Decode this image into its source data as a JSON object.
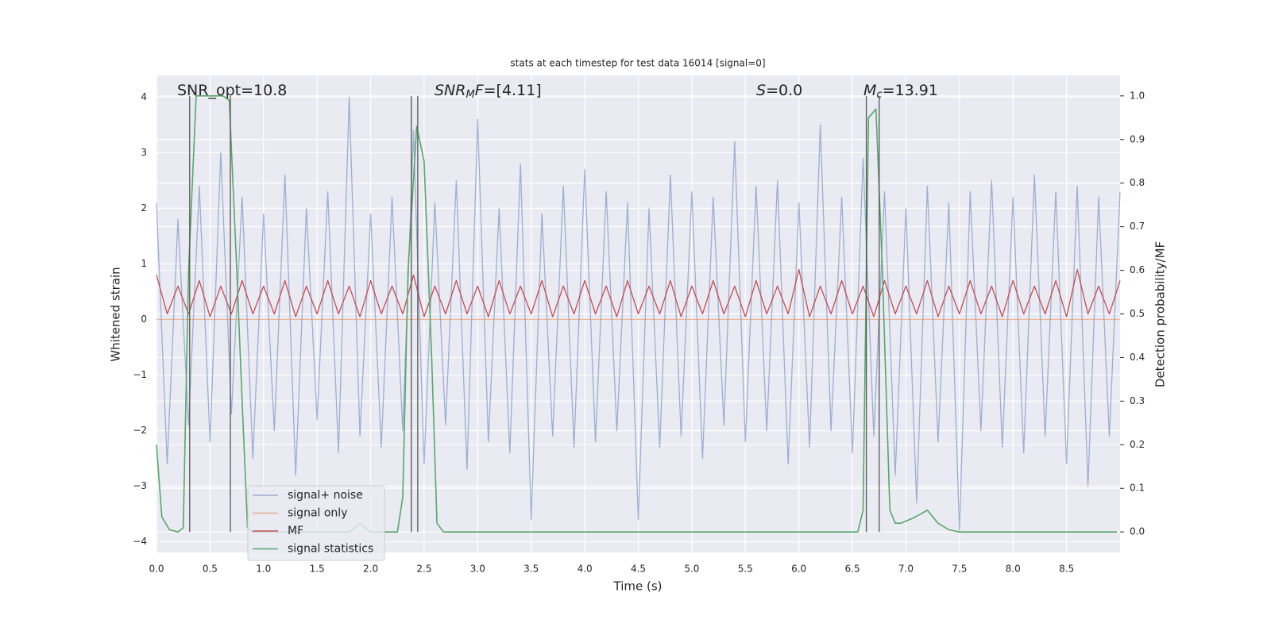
{
  "chart_data": {
    "type": "line",
    "title": "stats at each timestep for test data 16014 [signal=0]",
    "x_label": "Time (s)",
    "y_label": "Whitened strain",
    "y2_label": "Detection probability/MF",
    "annotations": [
      [
        "SNR_opt=10.8"
      ],
      [
        "SNR",
        "M",
        "F",
        "=[4.11]"
      ],
      [
        "S",
        "=0.0"
      ],
      [
        "M",
        "c",
        "=13.91"
      ]
    ],
    "xlim": [
      0,
      9.0
    ],
    "ylim": [
      -4.19,
      4.39
    ],
    "y2lim": [
      -0.047,
      1.047
    ],
    "xticks": [
      {
        "value": 0,
        "label": "0.0"
      },
      {
        "value": 0.5,
        "label": "0.5"
      },
      {
        "value": 1,
        "label": "1.0"
      },
      {
        "value": 1.5,
        "label": "1.5"
      },
      {
        "value": 2,
        "label": "2.0"
      },
      {
        "value": 2.5,
        "label": "2.5"
      },
      {
        "value": 3,
        "label": "3.0"
      },
      {
        "value": 3.5,
        "label": "3.5"
      },
      {
        "value": 4,
        "label": "4.0"
      },
      {
        "value": 4.5,
        "label": "4.5"
      },
      {
        "value": 5,
        "label": "5.0"
      },
      {
        "value": 5.5,
        "label": "5.5"
      },
      {
        "value": 6,
        "label": "6.0"
      },
      {
        "value": 6.5,
        "label": "6.5"
      },
      {
        "value": 7,
        "label": "7.0"
      },
      {
        "value": 7.5,
        "label": "7.5"
      },
      {
        "value": 8,
        "label": "8.0"
      },
      {
        "value": 8.5,
        "label": "8.5"
      }
    ],
    "yticks": [
      {
        "value": -4,
        "label": "−4"
      },
      {
        "value": -3,
        "label": "−3"
      },
      {
        "value": -2,
        "label": "−2"
      },
      {
        "value": -1,
        "label": "−1"
      },
      0,
      1,
      2,
      3,
      4
    ],
    "y2ticks": [
      {
        "value": 0,
        "label": "0.0"
      },
      0.1,
      0.2,
      0.3,
      0.4,
      0.5,
      0.6,
      0.7,
      0.8,
      0.9,
      {
        "value": 1,
        "label": "1.0"
      }
    ],
    "grid": true,
    "legend": "lower left",
    "x": [
      0,
      0.1,
      0.2,
      0.3,
      0.4,
      0.5,
      0.6,
      0.7,
      0.8,
      0.9,
      1,
      1.1,
      1.2,
      1.3,
      1.4,
      1.5,
      1.6,
      1.7,
      1.8,
      1.9,
      2,
      2.1,
      2.2,
      2.3,
      2.4,
      2.5,
      2.6,
      2.7,
      2.8,
      2.9,
      3,
      3.1,
      3.2,
      3.3,
      3.4,
      3.5,
      3.6,
      3.7,
      3.8,
      3.9,
      4,
      4.1,
      4.2,
      4.3,
      4.4,
      4.5,
      4.6,
      4.7,
      4.8,
      4.9,
      5,
      5.1,
      5.2,
      5.3,
      5.4,
      5.5,
      5.6,
      5.7,
      5.8,
      5.9,
      6,
      6.1,
      6.2,
      6.3,
      6.4,
      6.5,
      6.6,
      6.7,
      6.8,
      6.9,
      7,
      7.1,
      7.2,
      7.3,
      7.4,
      7.5,
      7.6,
      7.7,
      7.8,
      7.9,
      8,
      8.1,
      8.2,
      8.3,
      8.4,
      8.5,
      8.6,
      8.7,
      8.8,
      8.9,
      9
    ],
    "series": [
      {
        "name": "signal+ noise",
        "color": "#4c72b0",
        "values": [
          2.1,
          -2.6,
          1.8,
          -1.9,
          2.4,
          -2.2,
          3.0,
          -1.7,
          2.2,
          -2.5,
          1.9,
          -2.0,
          2.6,
          -2.8,
          2.0,
          -1.8,
          2.3,
          -2.4,
          4.0,
          -2.1,
          1.9,
          -2.3,
          2.2,
          -2.0,
          3.4,
          -2.6,
          2.1,
          -1.9,
          2.5,
          -2.7,
          3.6,
          -2.2,
          2.0,
          -2.4,
          2.8,
          -3.6,
          1.9,
          -2.1,
          2.4,
          -2.3,
          2.7,
          -2.2,
          2.3,
          -2.0,
          2.1,
          -3.6,
          2.0,
          -2.3,
          2.6,
          -2.1,
          2.3,
          -2.5,
          2.2,
          -1.9,
          3.2,
          -2.2,
          2.4,
          -2.0,
          2.5,
          -2.6,
          2.1,
          -2.3,
          3.5,
          -2.0,
          2.2,
          -2.4,
          2.9,
          -2.1,
          2.3,
          -2.8,
          2.0,
          -3.3,
          2.4,
          -2.2,
          2.1,
          -3.8,
          2.3,
          -2.0,
          2.5,
          -2.3,
          2.2,
          -2.4,
          2.6,
          -2.1,
          2.3,
          -2.6,
          2.4,
          -3.0,
          2.2,
          -2.1,
          2.3
        ]
      },
      {
        "name": "signal only",
        "color": "#dd8452",
        "values": [
          0,
          0,
          0,
          0,
          0,
          0,
          0,
          0,
          0,
          0,
          0,
          0,
          0,
          0,
          0,
          0,
          0,
          0,
          0,
          0,
          0,
          0,
          0,
          0,
          0,
          0,
          0,
          0,
          0,
          0,
          0,
          0,
          0,
          0,
          0,
          0,
          0,
          0,
          0,
          0,
          0,
          0,
          0,
          0,
          0,
          0,
          0,
          0,
          0,
          0,
          0,
          0,
          0,
          0,
          0,
          0,
          0,
          0,
          0,
          0,
          0,
          0,
          0,
          0,
          0,
          0,
          0,
          0,
          0,
          0,
          0,
          0,
          0,
          0,
          0,
          0,
          0,
          0,
          0,
          0,
          0,
          0,
          0,
          0,
          0,
          0,
          0,
          0,
          0,
          0,
          0
        ]
      },
      {
        "name": "MF",
        "color": "#c44e52",
        "values": [
          0.8,
          0.1,
          0.6,
          0.1,
          0.7,
          0.05,
          0.6,
          0.1,
          0.7,
          0.1,
          0.6,
          0.1,
          0.7,
          0.05,
          0.6,
          0.1,
          0.7,
          0.1,
          0.6,
          0.05,
          0.7,
          0.1,
          0.6,
          0.1,
          0.8,
          0.05,
          0.6,
          0.1,
          0.7,
          0.1,
          0.6,
          0.05,
          0.7,
          0.1,
          0.6,
          0.1,
          0.7,
          0.05,
          0.6,
          0.1,
          0.7,
          0.1,
          0.6,
          0.05,
          0.7,
          0.1,
          0.6,
          0.1,
          0.7,
          0.05,
          0.6,
          0.1,
          0.7,
          0.1,
          0.6,
          0.05,
          0.7,
          0.1,
          0.6,
          0.1,
          0.9,
          0.05,
          0.6,
          0.1,
          0.7,
          0.1,
          0.6,
          0.05,
          0.7,
          0.1,
          0.6,
          0.1,
          0.7,
          0.05,
          0.6,
          0.1,
          0.7,
          0.1,
          0.6,
          0.05,
          0.7,
          0.1,
          0.6,
          0.1,
          0.7,
          0.05,
          0.9,
          0.1,
          0.6,
          0.1,
          0.7
        ]
      },
      {
        "name": "signal statistics",
        "color": "#55a868",
        "axis": "y2",
        "x": [
          0,
          0.05,
          0.12,
          0.2,
          0.25,
          0.3,
          0.37,
          0.5,
          0.62,
          0.68,
          0.75,
          0.8,
          0.85,
          0.9,
          1.5,
          1.8,
          1.9,
          2.0,
          2.25,
          2.3,
          2.35,
          2.43,
          2.5,
          2.57,
          2.62,
          2.68,
          6.55,
          6.6,
          6.65,
          6.72,
          6.78,
          6.85,
          6.9,
          6.95,
          7.05,
          7.13,
          7.2,
          7.3,
          7.4,
          7.5,
          8.97
        ],
        "values": [
          0.2,
          0.035,
          0.005,
          0,
          0.01,
          0.6,
          1.0,
          1.0,
          1.0,
          0.99,
          0.6,
          0.3,
          0.01,
          0,
          0,
          0,
          0.02,
          0,
          0,
          0.08,
          0.6,
          0.93,
          0.85,
          0.4,
          0.02,
          0,
          0,
          0.05,
          0.95,
          0.97,
          0.6,
          0.05,
          0.02,
          0.02,
          0.03,
          0.04,
          0.05,
          0.02,
          0.005,
          0,
          0
        ]
      }
    ],
    "vlines": {
      "color": "#555555",
      "x": [
        0.31,
        0.69,
        2.38,
        2.44,
        6.63,
        6.75
      ],
      "y2": [
        0,
        1
      ]
    }
  }
}
